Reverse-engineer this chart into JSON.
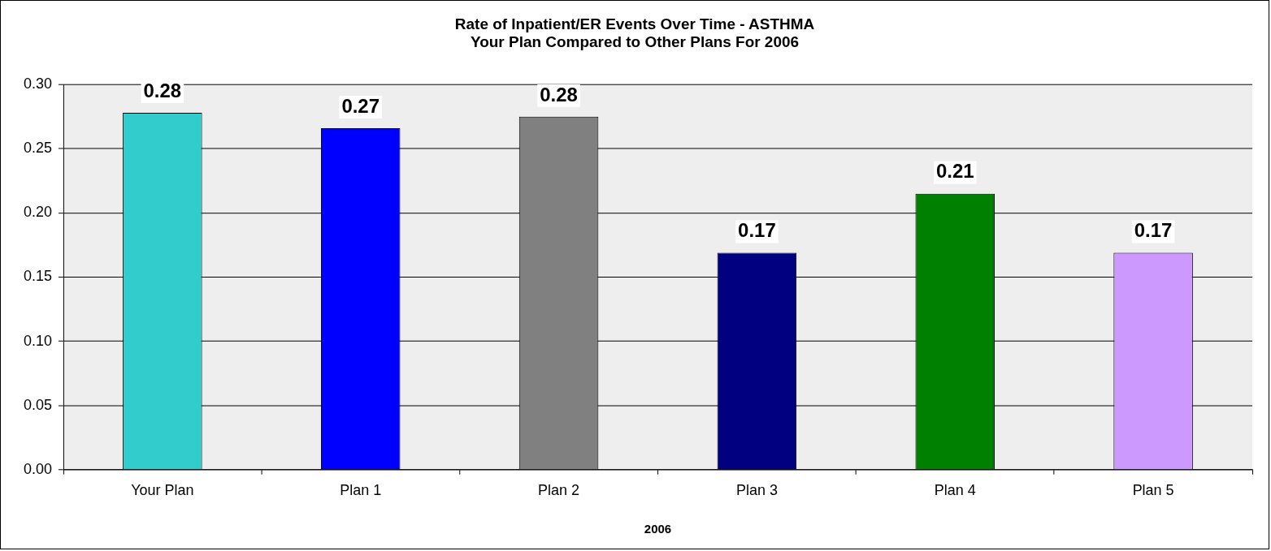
{
  "chart_data": {
    "type": "bar",
    "title": "Rate of Inpatient/ER Events Over Time - ASTHMA",
    "subtitle": "Your Plan Compared to Other Plans For 2006",
    "xlabel": "2006",
    "categories": [
      "Your Plan",
      "Plan 1",
      "Plan 2",
      "Plan 3",
      "Plan 4",
      "Plan 5"
    ],
    "values": [
      0.278,
      0.266,
      0.275,
      0.169,
      0.215,
      0.169
    ],
    "colors": [
      "#33cccc",
      "#0000ff",
      "#808080",
      "#000080",
      "#008000",
      "#cc99ff"
    ],
    "value_labels": [
      "0.28",
      "0.27",
      "0.28",
      "0.17",
      "0.21",
      "0.17"
    ],
    "ylim": [
      0,
      0.3
    ],
    "yticks": [
      {
        "value": 0,
        "label": "0.00"
      },
      {
        "value": 0.05,
        "label": "0.05"
      },
      {
        "value": 0.1,
        "label": "0.10"
      },
      {
        "value": 0.15,
        "label": "0.15"
      },
      {
        "value": 0.2,
        "label": "0.20"
      },
      {
        "value": 0.25,
        "label": "0.25"
      },
      {
        "value": 0.3,
        "label": "0.30"
      }
    ],
    "grid": "y",
    "legend": false
  }
}
